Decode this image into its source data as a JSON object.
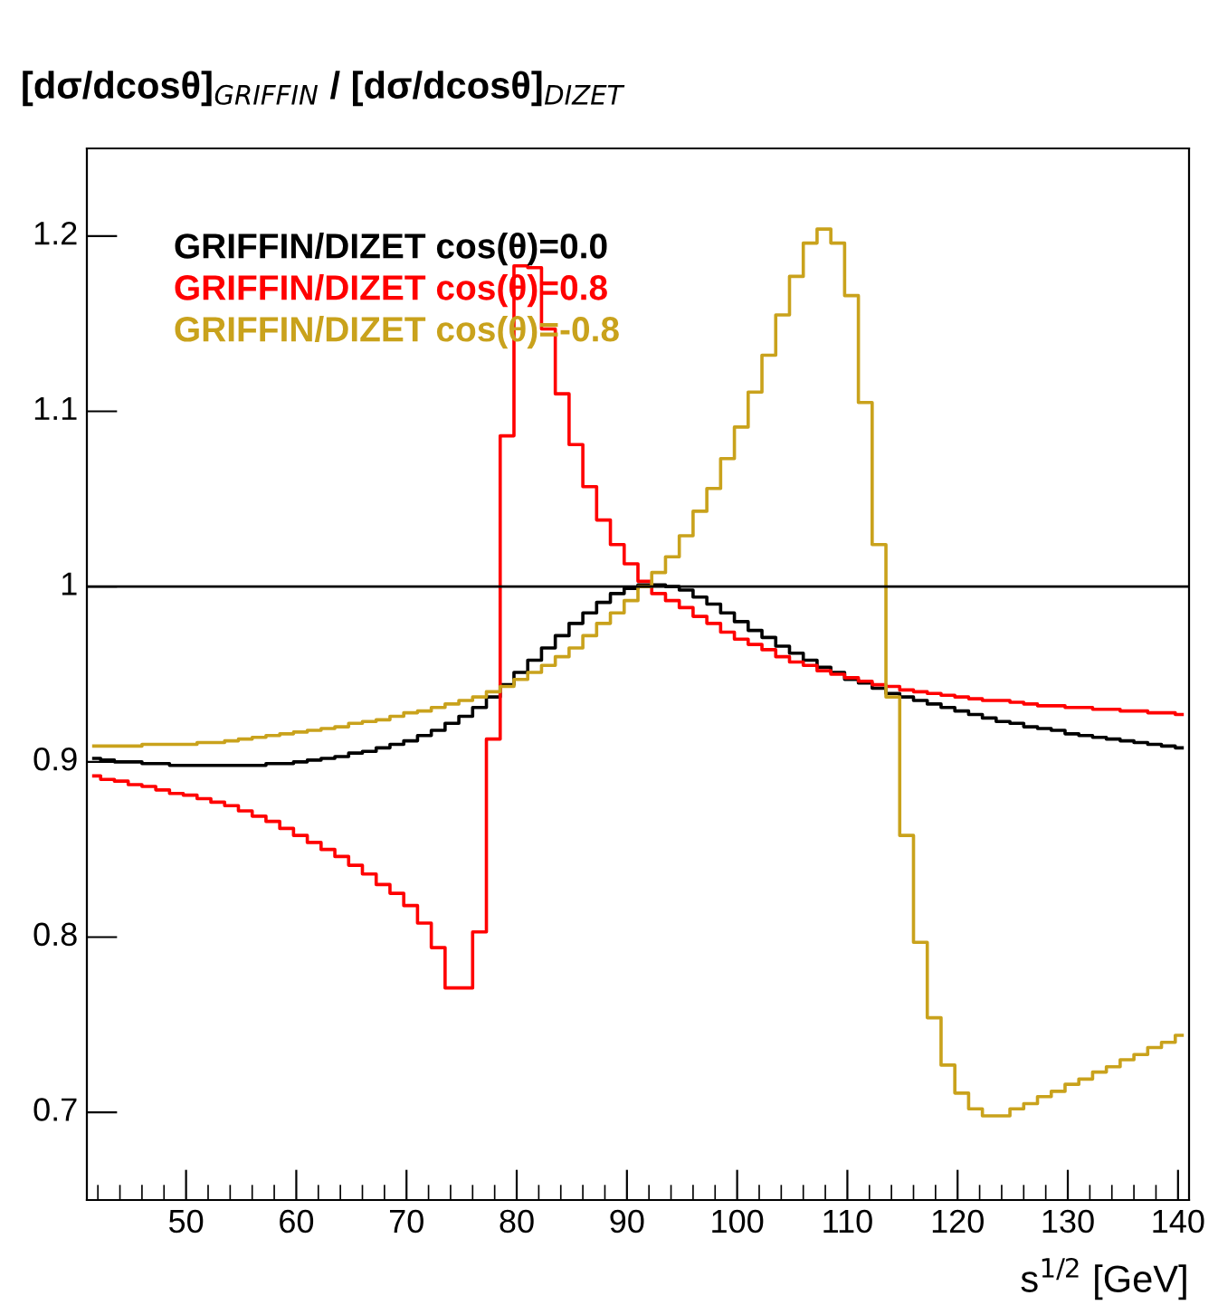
{
  "chart_data": {
    "type": "step",
    "ylabel": "[dσ/dcosθ]$_{GRIFFIN}$ / [dσ/dcosθ]$_{DIZET}$",
    "xlabel": "s$^{1/2}$ [GeV]",
    "x": [
      41.625,
      42.875,
      44.125,
      45.375,
      46.625,
      47.875,
      49.125,
      50.375,
      51.625,
      52.875,
      54.125,
      55.375,
      56.625,
      57.875,
      59.125,
      60.375,
      61.625,
      62.875,
      64.125,
      65.375,
      66.625,
      67.875,
      69.125,
      70.375,
      71.625,
      72.875,
      74.125,
      75.375,
      76.625,
      77.875,
      79.125,
      80.375,
      81.625,
      82.875,
      84.125,
      85.375,
      86.625,
      87.875,
      89.125,
      90.375,
      91.625,
      92.875,
      94.125,
      95.375,
      96.625,
      97.875,
      99.125,
      100.375,
      101.625,
      102.875,
      104.125,
      105.375,
      106.625,
      107.875,
      109.125,
      110.375,
      111.625,
      112.875,
      114.125,
      115.375,
      116.625,
      117.875,
      119.125,
      120.375,
      121.625,
      122.875,
      124.125,
      125.375,
      126.625,
      127.875,
      129.125,
      130.375,
      131.625,
      132.875,
      134.125,
      135.375,
      136.625,
      137.875,
      139.125,
      140.375
    ],
    "series": [
      {
        "name": "GRIFFIN/DIZET cos(θ)=0.0",
        "color": "#000000",
        "values": [
          0.902,
          0.901,
          0.9,
          0.9,
          0.899,
          0.899,
          0.898,
          0.898,
          0.898,
          0.898,
          0.898,
          0.898,
          0.898,
          0.899,
          0.899,
          0.9,
          0.901,
          0.902,
          0.903,
          0.905,
          0.906,
          0.908,
          0.91,
          0.912,
          0.915,
          0.918,
          0.922,
          0.926,
          0.931,
          0.937,
          0.944,
          0.951,
          0.958,
          0.965,
          0.972,
          0.979,
          0.985,
          0.991,
          0.996,
          0.999,
          1.001,
          1.001,
          1.0,
          0.998,
          0.994,
          0.99,
          0.985,
          0.98,
          0.975,
          0.971,
          0.966,
          0.962,
          0.958,
          0.954,
          0.951,
          0.947,
          0.945,
          0.942,
          0.939,
          0.937,
          0.935,
          0.933,
          0.931,
          0.929,
          0.927,
          0.925,
          0.923,
          0.922,
          0.92,
          0.919,
          0.918,
          0.916,
          0.915,
          0.914,
          0.913,
          0.912,
          0.911,
          0.91,
          0.909,
          0.908
        ]
      },
      {
        "name": "GRIFFIN/DIZET cos(θ)=0.8",
        "color": "#ff0000",
        "values": [
          0.892,
          0.89,
          0.889,
          0.887,
          0.886,
          0.884,
          0.882,
          0.881,
          0.879,
          0.877,
          0.875,
          0.872,
          0.869,
          0.866,
          0.862,
          0.858,
          0.854,
          0.85,
          0.846,
          0.841,
          0.836,
          0.83,
          0.825,
          0.818,
          0.808,
          0.794,
          0.771,
          0.771,
          0.803,
          0.913,
          1.086,
          1.183,
          1.182,
          1.147,
          1.11,
          1.081,
          1.057,
          1.038,
          1.024,
          1.013,
          1.003,
          0.996,
          0.992,
          0.988,
          0.983,
          0.979,
          0.974,
          0.97,
          0.967,
          0.964,
          0.96,
          0.957,
          0.955,
          0.952,
          0.95,
          0.948,
          0.946,
          0.944,
          0.943,
          0.941,
          0.94,
          0.939,
          0.938,
          0.937,
          0.936,
          0.935,
          0.935,
          0.934,
          0.933,
          0.932,
          0.932,
          0.931,
          0.931,
          0.93,
          0.93,
          0.929,
          0.929,
          0.928,
          0.928,
          0.927
        ]
      },
      {
        "name": "GRIFFIN/DIZET cos(θ)=-0.8",
        "color": "#c9a21c",
        "values": [
          0.909,
          0.909,
          0.909,
          0.909,
          0.91,
          0.91,
          0.91,
          0.91,
          0.911,
          0.911,
          0.912,
          0.913,
          0.914,
          0.915,
          0.916,
          0.917,
          0.918,
          0.919,
          0.92,
          0.922,
          0.923,
          0.924,
          0.926,
          0.928,
          0.929,
          0.931,
          0.933,
          0.935,
          0.937,
          0.94,
          0.943,
          0.947,
          0.951,
          0.955,
          0.96,
          0.965,
          0.972,
          0.979,
          0.985,
          0.992,
          1.0,
          1.008,
          1.017,
          1.029,
          1.043,
          1.056,
          1.073,
          1.091,
          1.111,
          1.132,
          1.155,
          1.177,
          1.196,
          1.204,
          1.196,
          1.166,
          1.105,
          1.024,
          0.937,
          0.858,
          0.797,
          0.754,
          0.727,
          0.711,
          0.702,
          0.698,
          0.698,
          0.702,
          0.705,
          0.709,
          0.712,
          0.716,
          0.719,
          0.723,
          0.726,
          0.73,
          0.733,
          0.737,
          0.74,
          0.744
        ]
      }
    ],
    "xlim": [
      41,
      141
    ],
    "ylim": [
      0.65,
      1.25
    ],
    "xticks": [
      50,
      60,
      70,
      80,
      90,
      100,
      110,
      120,
      130,
      140
    ],
    "yticks": [
      0.7,
      0.8,
      0.9,
      1,
      1.1,
      1.2
    ],
    "ref_lines": [
      {
        "axis": "y",
        "value": 1,
        "color": "#000000"
      }
    ],
    "legend": "top left"
  }
}
